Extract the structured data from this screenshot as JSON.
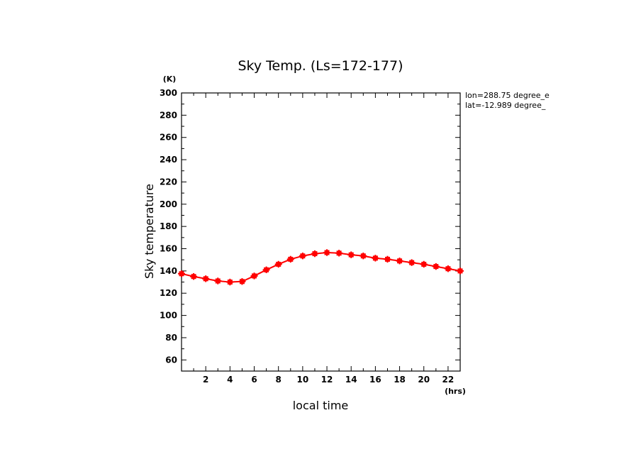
{
  "chart_data": {
    "type": "line",
    "title": "Sky Temp. (Ls=172-177)",
    "xlabel": "local time",
    "ylabel": "Sky temperature",
    "x_unit": "(hrs)",
    "y_unit": "(K)",
    "xlim": [
      0,
      23
    ],
    "ylim": [
      50,
      300
    ],
    "x_ticks": [
      2,
      4,
      6,
      8,
      10,
      12,
      14,
      16,
      18,
      20,
      22
    ],
    "y_ticks": [
      60,
      80,
      100,
      120,
      140,
      160,
      180,
      200,
      220,
      240,
      260,
      280,
      300
    ],
    "grid": false,
    "info_lines": [
      "lon=288.75 degree_e",
      "lat=-12.989 degree_"
    ],
    "series": [
      {
        "color": "#ff0000",
        "marker": "square-with-errorbar",
        "x": [
          0.0,
          1.0,
          2.0,
          3.0,
          4.0,
          5.0,
          6.0,
          7.0,
          8.0,
          9.0,
          10.0,
          11.0,
          12.0,
          13.0,
          14.0,
          15.0,
          16.0,
          17.0,
          18.0,
          19.0,
          20.0,
          21.0,
          22.0,
          23.0
        ],
        "y": [
          137.5,
          135,
          133,
          131,
          130,
          130.5,
          135.5,
          141,
          146,
          150.5,
          153.5,
          155.5,
          156.5,
          156,
          154.5,
          153.5,
          151.5,
          150.5,
          149,
          147.5,
          146,
          144,
          142,
          140
        ],
        "err": [
          3,
          3,
          3,
          3,
          3,
          3,
          3,
          3,
          3,
          3,
          3,
          3,
          3,
          3,
          3,
          3,
          3,
          3,
          3,
          3,
          3,
          3,
          3,
          3
        ]
      }
    ]
  }
}
